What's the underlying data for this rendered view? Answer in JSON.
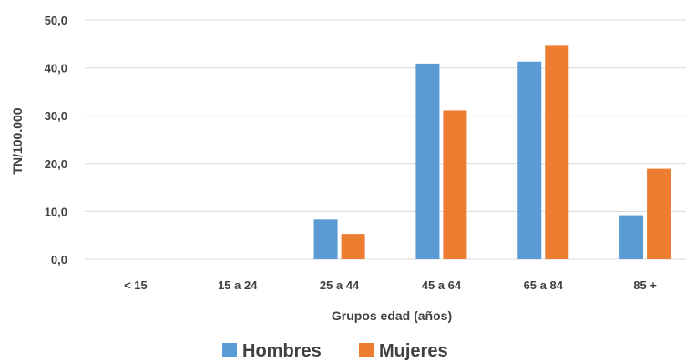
{
  "chart_data": {
    "type": "bar",
    "title": "",
    "xlabel": "Grupos edad (años)",
    "ylabel": "TN/100.000",
    "ylim": [
      0,
      50
    ],
    "yticks": [
      "0,0",
      "10,0",
      "20,0",
      "30,0",
      "40,0",
      "50,0"
    ],
    "categories": [
      "< 15",
      "15 a 24",
      "25 a 44",
      "45 a 64",
      "65 a 84",
      "85 +"
    ],
    "series": [
      {
        "name": "Hombres",
        "color": "#5B9BD5",
        "values": [
          0,
          0,
          8.3,
          40.9,
          41.3,
          9.2
        ]
      },
      {
        "name": "Mujeres",
        "color": "#ED7D31",
        "values": [
          0,
          0,
          5.3,
          31.1,
          44.6,
          18.9
        ]
      }
    ],
    "grid": true,
    "legend": "bottom"
  }
}
